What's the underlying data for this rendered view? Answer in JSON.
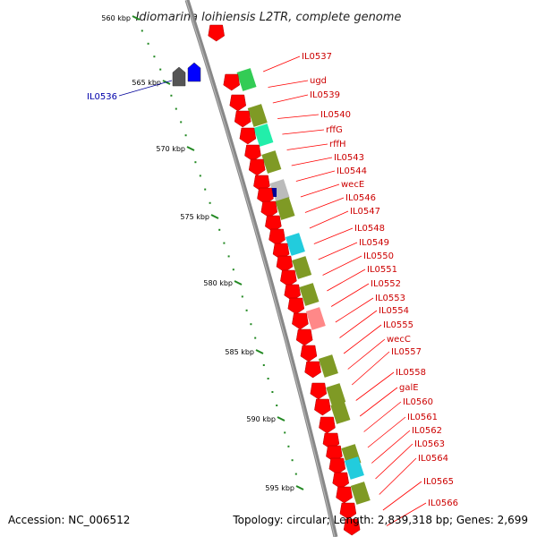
{
  "title": "Idiomarina loihiensis L2TR, complete genome",
  "footer": {
    "accession": "Accession: NC_006512",
    "summary": "Topology: circular; Length: 2,839,318 bp; Genes: 2,699"
  },
  "colors": {
    "gene_red": "#ff0000",
    "olive": "#7f9a25",
    "bright_green": "#33cc55",
    "mint": "#22eeaa",
    "cyan": "#22ccdd",
    "gray_box": "#bbbbbb",
    "navy": "#000099",
    "salmon": "#ff8888",
    "dark_gray": "#555555",
    "blue": "#0000ff",
    "backbone": "#888888",
    "scale_dot": "#228822"
  },
  "scale_ticks": [
    "560 kbp",
    "565 kbp",
    "570 kbp",
    "575 kbp",
    "580 kbp",
    "585 kbp",
    "590 kbp",
    "595 kbp"
  ],
  "left_genes": [
    {
      "name": "IL0536"
    }
  ],
  "right_genes": [
    {
      "name": "IL0537"
    },
    {
      "name": "ugd"
    },
    {
      "name": "IL0539"
    },
    {
      "name": "IL0540"
    },
    {
      "name": "rffG"
    },
    {
      "name": "rffH"
    },
    {
      "name": "IL0543"
    },
    {
      "name": "IL0544"
    },
    {
      "name": "wecE"
    },
    {
      "name": "IL0546"
    },
    {
      "name": "IL0547"
    },
    {
      "name": "IL0548"
    },
    {
      "name": "IL0549"
    },
    {
      "name": "IL0550"
    },
    {
      "name": "IL0551"
    },
    {
      "name": "IL0552"
    },
    {
      "name": "IL0553"
    },
    {
      "name": "IL0554"
    },
    {
      "name": "IL0555"
    },
    {
      "name": "wecC"
    },
    {
      "name": "IL0557"
    },
    {
      "name": "IL0558"
    },
    {
      "name": "galE"
    },
    {
      "name": "IL0560"
    },
    {
      "name": "IL0561"
    },
    {
      "name": "IL0562"
    },
    {
      "name": "IL0563"
    },
    {
      "name": "IL0564"
    },
    {
      "name": "IL0565"
    },
    {
      "name": "IL0566"
    }
  ],
  "feature_track": [
    {
      "color": "bright_green"
    },
    {
      "color": "olive"
    },
    {
      "color": "mint"
    },
    {
      "color": "olive"
    },
    {
      "color": "gray_box"
    },
    {
      "color": "olive"
    },
    {
      "color": "cyan"
    },
    {
      "color": "olive"
    },
    {
      "color": "olive"
    },
    {
      "color": "salmon"
    },
    {
      "color": "olive"
    },
    {
      "color": "olive"
    },
    {
      "color": "olive"
    },
    {
      "color": "olive"
    },
    {
      "color": "cyan"
    },
    {
      "color": "olive"
    }
  ]
}
